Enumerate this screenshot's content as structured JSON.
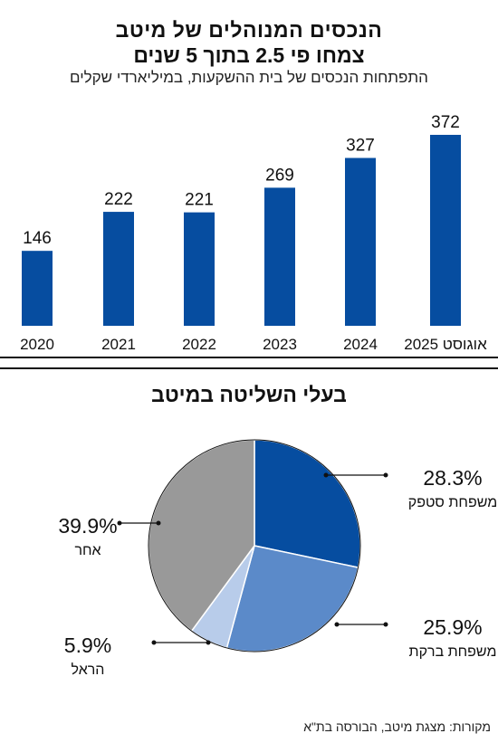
{
  "header": {
    "title_line1": "הנכסים המנוהלים של מיטב",
    "title_line2": "צמחו פי 2.5 בתוך 5 שנים",
    "subtitle": "התפתחות הנכסים של בית ההשקעות, במיליארדי שקלים"
  },
  "chart_data": [
    {
      "type": "bar",
      "categories": [
        "2020",
        "2021",
        "2022",
        "2023",
        "2024",
        "אוגוסט 2025"
      ],
      "values": [
        146,
        222,
        221,
        269,
        327,
        372
      ],
      "ylim": [
        0,
        372
      ],
      "grid": false,
      "color": "#064da0"
    },
    {
      "type": "pie",
      "title": "בעלי השליטה במיטב",
      "slices": [
        {
          "label": "משפחת סטפק",
          "value": 28.3,
          "value_label": "28.3%",
          "color": "#064da0"
        },
        {
          "label": "משפחת ברקת",
          "value": 25.9,
          "value_label": "25.9%",
          "color": "#5b8ac9"
        },
        {
          "label": "הראל",
          "value": 5.9,
          "value_label": "5.9%",
          "color": "#b8ccea"
        },
        {
          "label": "אחר",
          "value": 39.9,
          "value_label": "39.9%",
          "color": "#999999"
        }
      ]
    }
  ],
  "footer": {
    "source": "מקורות: מצגת מיטב, הבורסה בת\"א"
  }
}
